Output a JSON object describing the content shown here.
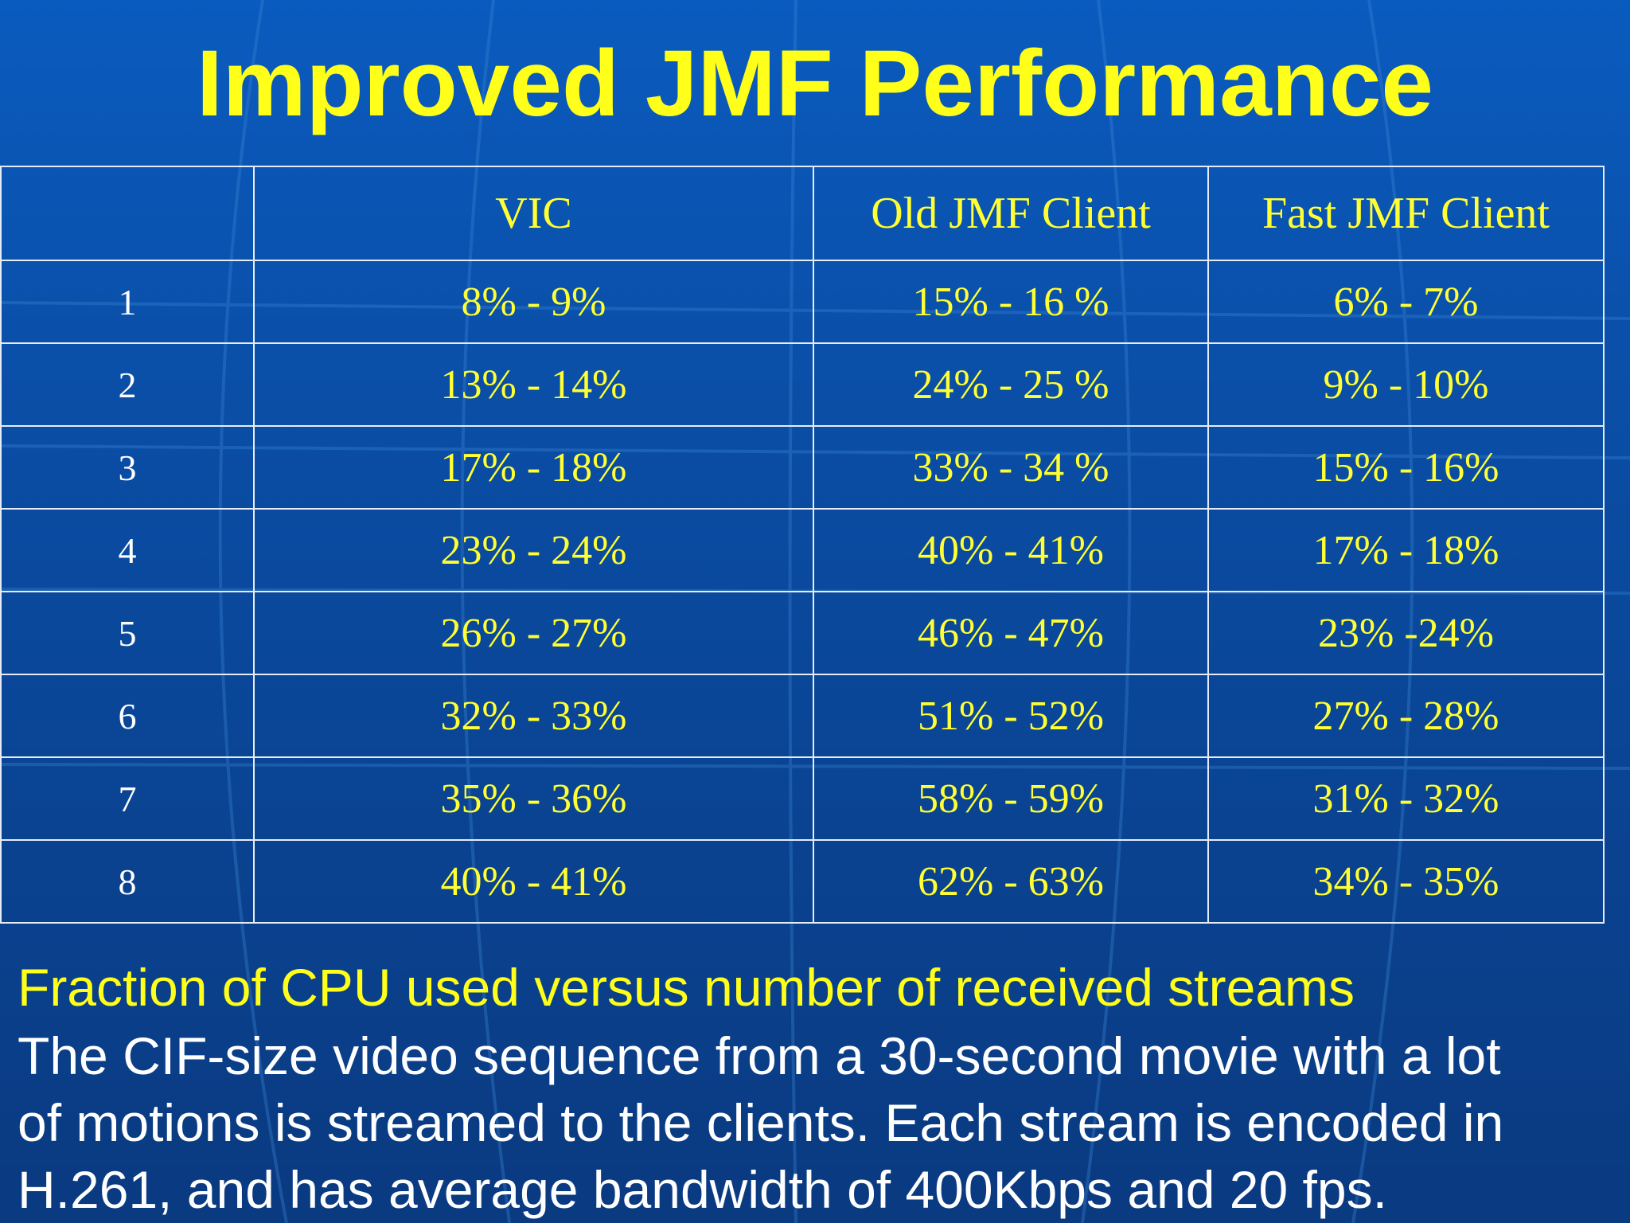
{
  "slide": {
    "title": "Improved JMF Performance",
    "caption": "Fraction of CPU used versus number of received streams",
    "description_lines": [
      "The CIF-size video sequence from a 30-second movie with a lot",
      "of motions is streamed to the clients. Each stream is encoded in",
      "H.261, and has average bandwidth of 400Kbps and 20 fps."
    ]
  },
  "table": {
    "headers": [
      "",
      "VIC",
      "Old JMF Client",
      "Fast JMF Client"
    ],
    "rows": [
      [
        "1",
        "8% - 9%",
        "15% - 16 %",
        "6% - 7%"
      ],
      [
        "2",
        "13% - 14%",
        "24% - 25 %",
        "9% - 10%"
      ],
      [
        "3",
        "17% - 18%",
        "33% - 34 %",
        "15% - 16%"
      ],
      [
        "4",
        "23% - 24%",
        "40% - 41%",
        "17% - 18%"
      ],
      [
        "5",
        "26% - 27%",
        "46% - 47%",
        "23% -24%"
      ],
      [
        "6",
        "32% - 33%",
        "51% - 52%",
        "27% - 28%"
      ],
      [
        "7",
        "35% - 36%",
        "58% - 59%",
        "31% - 32%"
      ],
      [
        "8",
        "40% - 41%",
        "62% - 63%",
        "34% - 35%"
      ]
    ]
  },
  "colors": {
    "background": "#0a4fa8",
    "title": "#ffff1a",
    "table_values": "#ffff33",
    "row_numbers": "#ffffff",
    "body_text": "#ffffff"
  }
}
